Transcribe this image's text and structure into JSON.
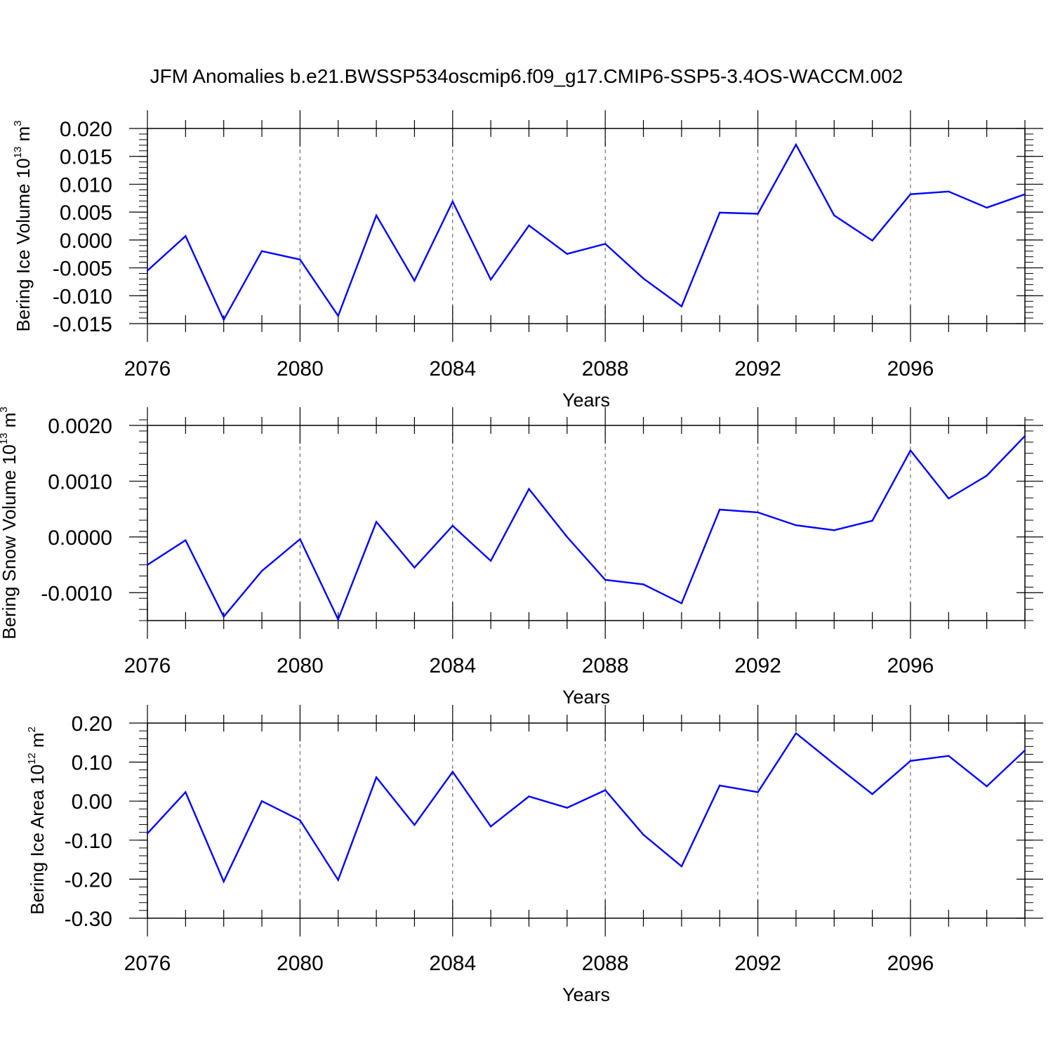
{
  "title": "JFM Anomalies b.e21.BWSSP534oscmip6.f09_g17.CMIP6-SSP5-3.4OS-WACCM.002",
  "line_color": "#0000ff",
  "chart_data": [
    {
      "type": "line",
      "id": "ice-volume",
      "ylabel": {
        "text": "Bering Ice Volume 10",
        "exp": "13",
        "unit": " m",
        "unit_exp": "3"
      },
      "xlabel": "Years",
      "x": [
        2076,
        2077,
        2078,
        2079,
        2080,
        2081,
        2082,
        2083,
        2084,
        2085,
        2086,
        2087,
        2088,
        2089,
        2090,
        2091,
        2092,
        2093,
        2094,
        2095,
        2096,
        2097,
        2098,
        2099
      ],
      "values": [
        -0.0055,
        0.0007,
        -0.0143,
        -0.002,
        -0.0035,
        -0.0136,
        0.0044,
        -0.0073,
        0.0069,
        -0.0071,
        0.0026,
        -0.0025,
        -0.0007,
        -0.0069,
        -0.0119,
        0.0049,
        0.0047,
        0.0171,
        0.0044,
        -0.0001,
        0.0082,
        0.0087,
        0.0058,
        0.0082
      ],
      "xlim": [
        2076,
        2099
      ],
      "ylim": [
        -0.015,
        0.02
      ],
      "yticks": [
        -0.015,
        -0.01,
        -0.005,
        0.0,
        0.005,
        0.01,
        0.015,
        0.02
      ],
      "ytick_labels": [
        "-0.015",
        "-0.010",
        "-0.005",
        "0.000",
        "0.005",
        "0.010",
        "0.015",
        "0.020"
      ],
      "yminor_step": 0.001,
      "xticks": [
        2076,
        2080,
        2084,
        2088,
        2092,
        2096
      ],
      "xtick_labels": [
        "2076",
        "2080",
        "2084",
        "2088",
        "2092",
        "2096"
      ],
      "grid": "vertical-dashed"
    },
    {
      "type": "line",
      "id": "snow-volume",
      "ylabel": {
        "text": "Bering Snow Volume 10",
        "exp": "13",
        "unit": " m",
        "unit_exp": "3"
      },
      "xlabel": "Years",
      "x": [
        2076,
        2077,
        2078,
        2079,
        2080,
        2081,
        2082,
        2083,
        2084,
        2085,
        2086,
        2087,
        2088,
        2089,
        2090,
        2091,
        2092,
        2093,
        2094,
        2095,
        2096,
        2097,
        2098,
        2099
      ],
      "values": [
        -0.0005,
        -6e-05,
        -0.00143,
        -0.00061,
        -4e-05,
        -0.00148,
        0.00027,
        -0.00055,
        0.0002,
        -0.00043,
        0.00086,
        0.0,
        -0.00077,
        -0.00085,
        -0.00119,
        0.00049,
        0.00044,
        0.00021,
        0.00012,
        0.00029,
        0.00155,
        0.00069,
        0.0011,
        0.00181
      ],
      "xlim": [
        2076,
        2099
      ],
      "ylim": [
        -0.0015,
        0.002
      ],
      "yticks": [
        -0.001,
        0.0,
        0.001,
        0.002
      ],
      "ytick_labels": [
        "-0.0010",
        "0.0000",
        "0.0010",
        "0.0020"
      ],
      "yminor_step": 0.0002,
      "xticks": [
        2076,
        2080,
        2084,
        2088,
        2092,
        2096
      ],
      "xtick_labels": [
        "2076",
        "2080",
        "2084",
        "2088",
        "2092",
        "2096"
      ],
      "grid": "vertical-dashed"
    },
    {
      "type": "line",
      "id": "ice-area",
      "ylabel": {
        "text": "Bering Ice Area 10",
        "exp": "12",
        "unit": " m",
        "unit_exp": "2"
      },
      "xlabel": "Years",
      "x": [
        2076,
        2077,
        2078,
        2079,
        2080,
        2081,
        2082,
        2083,
        2084,
        2085,
        2086,
        2087,
        2088,
        2089,
        2090,
        2091,
        2092,
        2093,
        2094,
        2095,
        2096,
        2097,
        2098,
        2099
      ],
      "values": [
        -0.083,
        0.023,
        -0.206,
        0.0,
        -0.049,
        -0.202,
        0.061,
        -0.061,
        0.075,
        -0.065,
        0.012,
        -0.017,
        0.028,
        -0.086,
        -0.167,
        0.04,
        0.023,
        0.174,
        0.095,
        0.018,
        0.103,
        0.116,
        0.038,
        0.13
      ],
      "xlim": [
        2076,
        2099
      ],
      "ylim": [
        -0.3,
        0.2
      ],
      "yticks": [
        -0.3,
        -0.2,
        -0.1,
        0.0,
        0.1,
        0.2
      ],
      "ytick_labels": [
        "-0.30",
        "-0.20",
        "-0.10",
        "0.00",
        "0.10",
        "0.20"
      ],
      "yminor_step": 0.02,
      "xticks": [
        2076,
        2080,
        2084,
        2088,
        2092,
        2096
      ],
      "xtick_labels": [
        "2076",
        "2080",
        "2084",
        "2088",
        "2092",
        "2096"
      ],
      "grid": "vertical-dashed"
    }
  ]
}
